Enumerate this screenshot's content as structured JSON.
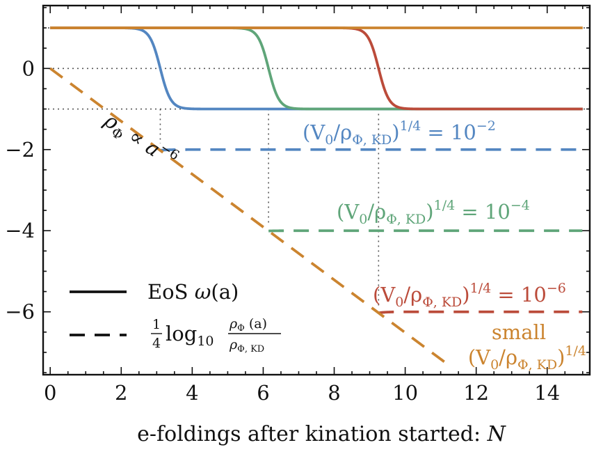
{
  "chart_data": {
    "type": "line",
    "xlabel_prefix": "e-foldings after kination started: ",
    "xlabel_var": "N",
    "xlim": [
      -0.2,
      15.2
    ],
    "ylim": [
      -7.55,
      1.55
    ],
    "xticks": [
      0,
      2,
      4,
      6,
      8,
      10,
      12,
      14
    ],
    "xtick_labels": [
      "0",
      "2",
      "4",
      "6",
      "8",
      "10",
      "12",
      "14"
    ],
    "yticks": [
      0,
      -2,
      -4,
      -6
    ],
    "ytick_labels": [
      "0",
      "−2",
      "−4",
      "−6"
    ],
    "reference_lines": [
      1,
      0,
      -1
    ],
    "colors": {
      "blue": "#5386c1",
      "green": "#5fa579",
      "red": "#bb4b3a",
      "orange": "#cb842f"
    },
    "series": [
      {
        "name": "EoS blue (10^-2)",
        "style": "solid",
        "color_key": "blue",
        "transition_N": 3.1,
        "from": 1,
        "to": -1,
        "x_start": 0,
        "x_end": 15
      },
      {
        "name": "EoS green (10^-4)",
        "style": "solid",
        "color_key": "green",
        "transition_N": 6.15,
        "from": 1,
        "to": -1,
        "x_start": 0,
        "x_end": 15
      },
      {
        "name": "EoS red (10^-6)",
        "style": "solid",
        "color_key": "red",
        "transition_N": 9.25,
        "from": 1,
        "to": -1,
        "x_start": 0,
        "x_end": 15
      },
      {
        "name": "EoS orange (small)",
        "style": "solid",
        "color_key": "orange",
        "value": 1,
        "x_start": 0,
        "x_end": 15
      },
      {
        "name": "log density blue",
        "style": "dashed",
        "color_key": "blue",
        "break_N": 3.1,
        "plateau": -2,
        "x_end": 15
      },
      {
        "name": "log density green",
        "style": "dashed",
        "color_key": "green",
        "break_N": 6.15,
        "plateau": -4,
        "x_end": 15
      },
      {
        "name": "log density red",
        "style": "dashed",
        "color_key": "red",
        "break_N": 9.25,
        "plateau": -6,
        "x_end": 15
      },
      {
        "name": "log density orange (small)",
        "style": "dashed",
        "color_key": "orange",
        "slope": -0.6515,
        "x_start": 0,
        "x_end": 11.1
      }
    ],
    "vertical_guides": [
      {
        "x": 3.1,
        "y_top": -1,
        "y_bottom": -1.85
      },
      {
        "x": 6.15,
        "y_top": -1,
        "y_bottom": -3.85
      },
      {
        "x": 9.25,
        "y_top": -1,
        "y_bottom": -5.85
      }
    ],
    "annotations": {
      "blue_label": {
        "base": "(V",
        "sub0": "0",
        "mid": "/ρ",
        "subKD": "Φ, KD",
        "close": ")",
        "exp": "1/4",
        "eq": " = 10",
        "pow": "−2"
      },
      "green_label": {
        "base": "(V",
        "sub0": "0",
        "mid": "/ρ",
        "subKD": "Φ, KD",
        "close": ")",
        "exp": "1/4",
        "eq": " = 10",
        "pow": "−4"
      },
      "red_label": {
        "base": "(V",
        "sub0": "0",
        "mid": "/ρ",
        "subKD": "Φ, KD",
        "close": ")",
        "exp": "1/4",
        "eq": " = 10",
        "pow": "−6"
      },
      "small_word": "small",
      "small_label": {
        "base": "(V",
        "sub0": "0",
        "mid": "/ρ",
        "subKD": "Φ, KD",
        "close": ")",
        "exp": "1/4"
      },
      "scaling": {
        "rho": "ρ",
        "sub": "Φ",
        "prop": " ∝ ",
        "a": "a",
        "pow": "−6"
      }
    },
    "legend": {
      "solid_label": "EoS ",
      "solid_omega": "ω",
      "solid_arg": "(a)",
      "dashed_num": "1",
      "dashed_den": "4",
      "dashed_log": "log",
      "dashed_base": "10",
      "frac_top_rho": "ρ",
      "frac_top_sub": "Φ",
      "frac_top_arg": " (a)",
      "frac_bot_rho": "ρ",
      "frac_bot_sub": "Φ, KD"
    }
  }
}
